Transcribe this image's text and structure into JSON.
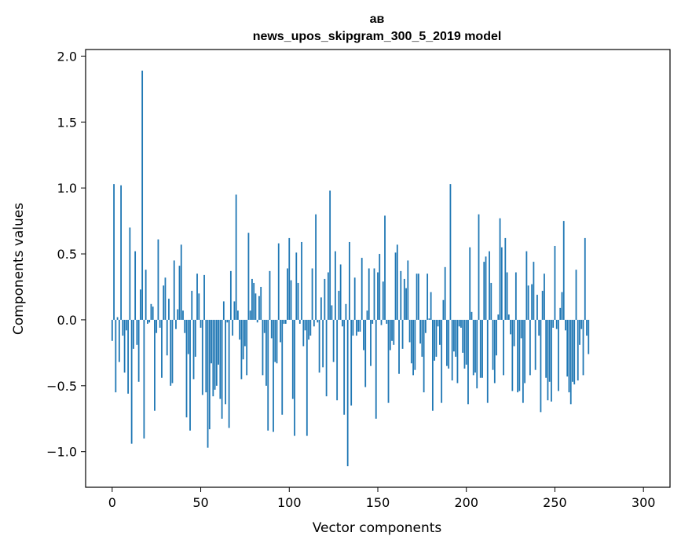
{
  "chart_data": {
    "type": "bar",
    "title": "ав",
    "subtitle": "news_upos_skipgram_300_5_2019 model",
    "xlabel": "Vector components",
    "ylabel": "Components values",
    "xlim": [
      -15,
      315
    ],
    "ylim": [
      -1.27,
      2.05
    ],
    "x_ticks": [
      0,
      50,
      100,
      150,
      200,
      250,
      300
    ],
    "y_ticks": [
      -1.0,
      -0.5,
      0.0,
      0.5,
      1.0,
      1.5,
      2.0
    ],
    "x_tick_labels": [
      "0",
      "50",
      "100",
      "150",
      "200",
      "250",
      "300"
    ],
    "y_tick_labels": [
      "−1.0",
      "−0.5",
      "0.0",
      "0.5",
      "1.0",
      "1.5",
      "2.0"
    ],
    "bar_color": "#1f77b4",
    "values": [
      -0.16,
      1.03,
      -0.55,
      0.02,
      -0.32,
      1.02,
      -0.12,
      -0.4,
      -0.08,
      -0.56,
      0.7,
      -0.94,
      -0.22,
      0.52,
      -0.19,
      -0.47,
      0.23,
      1.89,
      -0.9,
      0.38,
      -0.03,
      -0.02,
      0.12,
      0.1,
      -0.69,
      -0.1,
      0.61,
      -0.06,
      -0.44,
      0.26,
      0.32,
      -0.27,
      0.16,
      -0.5,
      -0.48,
      0.45,
      -0.07,
      0.08,
      0.41,
      0.57,
      0.07,
      -0.1,
      -0.74,
      -0.26,
      -0.84,
      0.22,
      -0.45,
      -0.28,
      0.35,
      0.2,
      -0.06,
      -0.57,
      0.34,
      -0.55,
      -0.97,
      -0.83,
      -0.33,
      -0.58,
      -0.53,
      -0.5,
      -0.34,
      -0.6,
      -0.75,
      0.14,
      -0.64,
      -0.02,
      -0.82,
      0.37,
      -0.12,
      0.14,
      0.95,
      0.07,
      -0.15,
      -0.45,
      -0.3,
      -0.2,
      -0.42,
      0.66,
      0.07,
      0.31,
      0.28,
      0.2,
      -0.02,
      0.18,
      0.25,
      -0.42,
      -0.1,
      -0.5,
      -0.84,
      0.37,
      -0.14,
      -0.85,
      -0.32,
      -0.33,
      0.58,
      -0.17,
      -0.72,
      -0.03,
      -0.03,
      0.39,
      0.62,
      0.3,
      -0.6,
      -0.88,
      0.51,
      0.28,
      -0.03,
      0.59,
      -0.2,
      -0.08,
      -0.88,
      -0.15,
      -0.12,
      0.39,
      -0.05,
      0.8,
      -0.02,
      -0.4,
      0.17,
      -0.36,
      0.31,
      -0.58,
      0.36,
      0.98,
      0.11,
      -0.32,
      0.52,
      -0.61,
      0.22,
      0.42,
      -0.05,
      -0.72,
      0.12,
      -1.11,
      0.59,
      -0.65,
      -0.12,
      0.32,
      -0.12,
      -0.09,
      -0.09,
      0.47,
      -0.23,
      -0.51,
      0.07,
      0.39,
      -0.35,
      -0.03,
      0.39,
      -0.75,
      0.36,
      0.5,
      -0.04,
      0.29,
      0.79,
      -0.03,
      -0.63,
      -0.23,
      -0.16,
      -0.19,
      0.51,
      0.57,
      -0.41,
      0.37,
      -0.22,
      0.31,
      0.24,
      0.45,
      -0.17,
      -0.33,
      -0.42,
      -0.38,
      0.35,
      0.35,
      -0.18,
      -0.28,
      -0.55,
      -0.1,
      0.35,
      0.01,
      0.21,
      -0.69,
      -0.31,
      -0.28,
      -0.05,
      -0.19,
      -0.63,
      0.15,
      0.4,
      -0.35,
      -0.37,
      1.03,
      -0.46,
      -0.24,
      -0.28,
      -0.48,
      -0.05,
      -0.06,
      -0.25,
      -0.37,
      -0.34,
      -0.64,
      0.55,
      0.06,
      -0.42,
      -0.4,
      -0.52,
      0.8,
      -0.44,
      -0.44,
      0.44,
      0.48,
      -0.63,
      0.52,
      0.28,
      -0.38,
      -0.48,
      -0.27,
      0.04,
      0.77,
      0.55,
      -0.42,
      0.62,
      0.36,
      0.04,
      -0.11,
      -0.54,
      -0.2,
      0.36,
      -0.55,
      -0.54,
      -0.14,
      -0.63,
      -0.48,
      0.52,
      0.26,
      -0.42,
      0.27,
      0.44,
      -0.38,
      0.19,
      -0.12,
      -0.7,
      0.22,
      0.35,
      -0.44,
      -0.61,
      -0.47,
      -0.62,
      -0.06,
      0.56,
      -0.07,
      -0.54,
      0.09,
      0.21,
      0.75,
      -0.08,
      -0.43,
      -0.55,
      -0.64,
      -0.47,
      -0.49,
      0.38,
      -0.46,
      -0.19,
      -0.07,
      -0.42,
      0.62,
      -0.12,
      -0.26
    ]
  }
}
